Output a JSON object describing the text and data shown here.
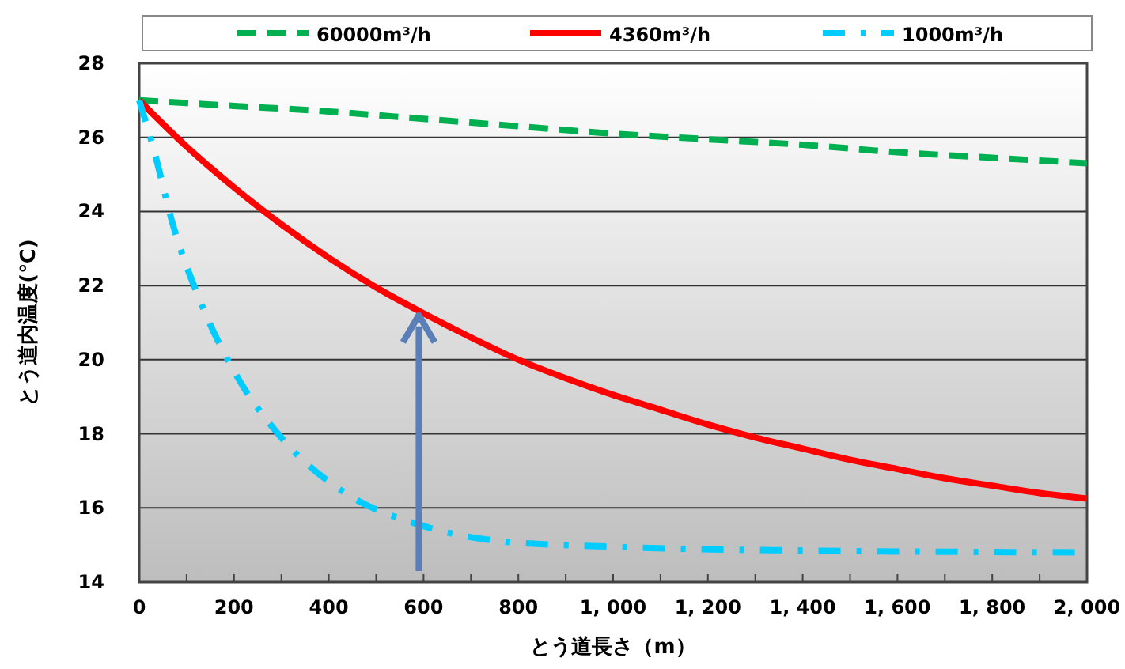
{
  "chart_data": {
    "type": "line",
    "xlabel": "とう道長さ（m）",
    "ylabel": "とう道内温度(℃)",
    "xlim": [
      0,
      2000
    ],
    "ylim": [
      14,
      28
    ],
    "xticks": [
      0,
      {
        "value": 100,
        "label": null
      },
      200,
      {
        "value": 300,
        "label": null
      },
      400,
      {
        "value": 500,
        "label": null
      },
      600,
      {
        "value": 700,
        "label": null
      },
      800,
      {
        "value": 900,
        "label": null
      },
      {
        "value": 1000,
        "label": "1, 000"
      },
      {
        "value": 1100,
        "label": null
      },
      {
        "value": 1200,
        "label": "1, 200"
      },
      {
        "value": 1300,
        "label": null
      },
      {
        "value": 1400,
        "label": "1, 400"
      },
      {
        "value": 1500,
        "label": null
      },
      {
        "value": 1600,
        "label": "1, 600"
      },
      {
        "value": 1700,
        "label": null
      },
      {
        "value": 1800,
        "label": "1, 800"
      },
      {
        "value": 1900,
        "label": null
      },
      {
        "value": 2000,
        "label": "2, 000"
      }
    ],
    "yticks": [
      14,
      16,
      18,
      20,
      22,
      24,
      26,
      28
    ],
    "grid": "y",
    "legend": "top",
    "marker": "none",
    "series": [
      {
        "name": "60000m³/h",
        "color": "#00b050",
        "line_style": "dashed",
        "x": [
          0,
          200,
          400,
          600,
          800,
          1000,
          1200,
          1400,
          1600,
          1800,
          2000
        ],
        "values": [
          27,
          26.85,
          26.7,
          26.5,
          26.3,
          26.1,
          25.95,
          25.8,
          25.6,
          25.45,
          25.3
        ]
      },
      {
        "name": "4360m³/h",
        "color": "#ff0000",
        "line_style": "solid",
        "x": [
          0,
          100,
          200,
          300,
          400,
          500,
          600,
          700,
          800,
          900,
          1000,
          1100,
          1200,
          1300,
          1400,
          1500,
          1600,
          1700,
          1800,
          1900,
          2000
        ],
        "values": [
          27,
          25.75,
          24.65,
          23.65,
          22.75,
          21.95,
          21.25,
          20.6,
          20,
          19.5,
          19.05,
          18.65,
          18.25,
          17.9,
          17.6,
          17.3,
          17.05,
          16.8,
          16.6,
          16.4,
          16.25
        ]
      },
      {
        "name": "1000m³/h",
        "color": "#00ccff",
        "line_style": "dashdot",
        "x": [
          0,
          30,
          72,
          128,
          204,
          303,
          435,
          590,
          764,
          1000,
          1400,
          2000
        ],
        "values": [
          27,
          25.7,
          23.6,
          21.6,
          19.6,
          17.85,
          16.4,
          15.55,
          15.1,
          14.95,
          14.85,
          14.8
        ]
      }
    ]
  }
}
